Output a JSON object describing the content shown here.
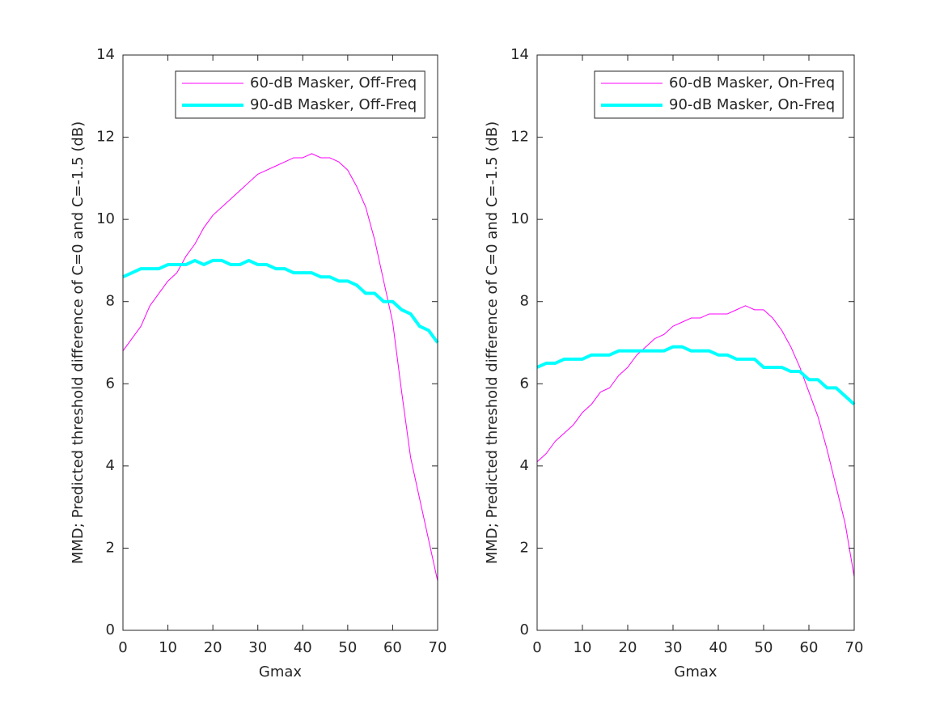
{
  "chart_data": [
    {
      "type": "line",
      "xlabel": "Gmax",
      "ylabel": "MMD; Predicted threshold difference of C=0 and C=-1.5  (dB)",
      "x": [
        0,
        2,
        4,
        6,
        8,
        10,
        12,
        14,
        16,
        18,
        20,
        22,
        24,
        26,
        28,
        30,
        32,
        34,
        36,
        38,
        40,
        42,
        44,
        46,
        48,
        50,
        52,
        54,
        56,
        58,
        60,
        62,
        64,
        66,
        68,
        70
      ],
      "series": [
        {
          "name": "60-dB Masker, Off-Freq",
          "color": "#ff00ff",
          "width": 1,
          "values": [
            6.8,
            7.1,
            7.4,
            7.9,
            8.2,
            8.5,
            8.7,
            9.1,
            9.4,
            9.8,
            10.1,
            10.3,
            10.5,
            10.7,
            10.9,
            11.1,
            11.2,
            11.3,
            11.4,
            11.5,
            11.5,
            11.6,
            11.5,
            11.5,
            11.4,
            11.2,
            10.8,
            10.3,
            9.5,
            8.5,
            7.5,
            5.8,
            4.2,
            3.2,
            2.2,
            1.2
          ]
        },
        {
          "name": "90-dB Masker, Off-Freq",
          "color": "#00ffff",
          "width": 4,
          "values": [
            8.6,
            8.7,
            8.8,
            8.8,
            8.8,
            8.9,
            8.9,
            8.9,
            9.0,
            8.9,
            9.0,
            9.0,
            8.9,
            8.9,
            9.0,
            8.9,
            8.9,
            8.8,
            8.8,
            8.7,
            8.7,
            8.7,
            8.6,
            8.6,
            8.5,
            8.5,
            8.4,
            8.2,
            8.2,
            8.0,
            8.0,
            7.8,
            7.7,
            7.4,
            7.3,
            7.0
          ]
        }
      ],
      "xlim": [
        0,
        70
      ],
      "xticks": [
        0,
        10,
        20,
        30,
        40,
        50,
        60,
        70
      ],
      "ylim": [
        0,
        14
      ],
      "yticks": [
        0,
        2,
        4,
        6,
        8,
        10,
        12,
        14
      ],
      "grid": false,
      "legend": "top-right"
    },
    {
      "type": "line",
      "xlabel": "Gmax",
      "ylabel": "MMD; Predicted threshold difference of C=0 and C=-1.5  (dB)",
      "x": [
        0,
        2,
        4,
        6,
        8,
        10,
        12,
        14,
        16,
        18,
        20,
        22,
        24,
        26,
        28,
        30,
        32,
        34,
        36,
        38,
        40,
        42,
        44,
        46,
        48,
        50,
        52,
        54,
        56,
        58,
        60,
        62,
        64,
        66,
        68,
        70
      ],
      "series": [
        {
          "name": "60-dB Masker, On-Freq",
          "color": "#ff00ff",
          "width": 1,
          "values": [
            4.1,
            4.3,
            4.6,
            4.8,
            5.0,
            5.3,
            5.5,
            5.8,
            5.9,
            6.2,
            6.4,
            6.7,
            6.9,
            7.1,
            7.2,
            7.4,
            7.5,
            7.6,
            7.6,
            7.7,
            7.7,
            7.7,
            7.8,
            7.9,
            7.8,
            7.8,
            7.6,
            7.3,
            6.9,
            6.4,
            5.8,
            5.2,
            4.4,
            3.5,
            2.6,
            1.3
          ]
        },
        {
          "name": "90-dB Masker, On-Freq",
          "color": "#00ffff",
          "width": 4,
          "values": [
            6.4,
            6.5,
            6.5,
            6.6,
            6.6,
            6.6,
            6.7,
            6.7,
            6.7,
            6.8,
            6.8,
            6.8,
            6.8,
            6.8,
            6.8,
            6.9,
            6.9,
            6.8,
            6.8,
            6.8,
            6.7,
            6.7,
            6.6,
            6.6,
            6.6,
            6.4,
            6.4,
            6.4,
            6.3,
            6.3,
            6.1,
            6.1,
            5.9,
            5.9,
            5.7,
            5.5
          ]
        }
      ],
      "xlim": [
        0,
        70
      ],
      "xticks": [
        0,
        10,
        20,
        30,
        40,
        50,
        60,
        70
      ],
      "ylim": [
        0,
        14
      ],
      "yticks": [
        0,
        2,
        4,
        6,
        8,
        10,
        12,
        14
      ],
      "grid": false,
      "legend": "top-right"
    }
  ]
}
